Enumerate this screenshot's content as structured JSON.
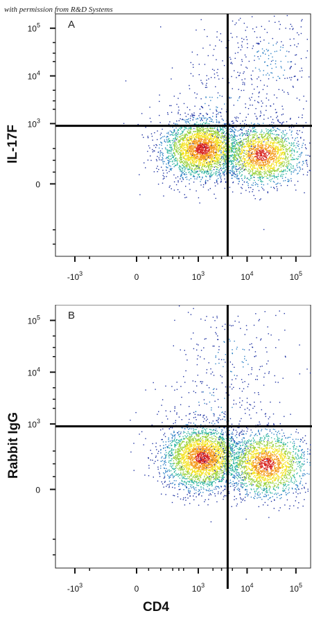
{
  "credit_text": "with permission from R&D Systems",
  "x_axis_label": "CD4",
  "chart_data": [
    {
      "type": "scatter",
      "panel_label": "A",
      "ylabel": "IL-17F",
      "xlabel": "CD4",
      "x_scale": "biexponential",
      "y_scale": "biexponential",
      "x_ticks": [
        {
          "base": "-10",
          "exp": "3",
          "value": -1000
        },
        {
          "base": "0",
          "exp": "",
          "value": 0
        },
        {
          "base": "10",
          "exp": "3",
          "value": 1000
        },
        {
          "base": "10",
          "exp": "4",
          "value": 10000
        },
        {
          "base": "10",
          "exp": "5",
          "value": 100000
        }
      ],
      "y_ticks": [
        {
          "base": "0",
          "exp": "",
          "value": 0
        },
        {
          "base": "10",
          "exp": "3",
          "value": 1000
        },
        {
          "base": "10",
          "exp": "4",
          "value": 10000
        },
        {
          "base": "10",
          "exp": "5",
          "value": 100000
        }
      ],
      "quadrant_gate": {
        "x": 4000,
        "y": 900
      },
      "populations": [
        {
          "center_x": 1200,
          "center_y": 300,
          "relative_size": 0.55
        },
        {
          "center_x": 20000,
          "center_y": 250,
          "relative_size": 0.35
        },
        {
          "center_x": 30000,
          "center_y": 20000,
          "relative_size": 0.06,
          "sparse": true
        },
        {
          "center_x": 3000,
          "center_y": 3000,
          "relative_size": 0.04,
          "sparse": true
        }
      ],
      "density_colors": [
        "#1b2fa0",
        "#2a7fc4",
        "#2fb5a0",
        "#9ad13c",
        "#f3e21e",
        "#f49a1a",
        "#d7231f"
      ]
    },
    {
      "type": "scatter",
      "panel_label": "B",
      "ylabel": "Rabbit IgG",
      "xlabel": "CD4",
      "x_scale": "biexponential",
      "y_scale": "biexponential",
      "x_ticks": [
        {
          "base": "-10",
          "exp": "3",
          "value": -1000
        },
        {
          "base": "0",
          "exp": "",
          "value": 0
        },
        {
          "base": "10",
          "exp": "3",
          "value": 1000
        },
        {
          "base": "10",
          "exp": "4",
          "value": 10000
        },
        {
          "base": "10",
          "exp": "5",
          "value": 100000
        }
      ],
      "y_ticks": [
        {
          "base": "0",
          "exp": "",
          "value": 0
        },
        {
          "base": "10",
          "exp": "3",
          "value": 1000
        },
        {
          "base": "10",
          "exp": "4",
          "value": 10000
        },
        {
          "base": "10",
          "exp": "5",
          "value": 100000
        }
      ],
      "quadrant_gate": {
        "x": 4000,
        "y": 900
      },
      "populations": [
        {
          "center_x": 1200,
          "center_y": 250,
          "relative_size": 0.55
        },
        {
          "center_x": 25000,
          "center_y": 200,
          "relative_size": 0.38
        },
        {
          "center_x": 5000,
          "center_y": 20000,
          "relative_size": 0.04,
          "sparse": true
        },
        {
          "center_x": 2000,
          "center_y": 2000,
          "relative_size": 0.03,
          "sparse": true
        }
      ],
      "density_colors": [
        "#1b2fa0",
        "#2a7fc4",
        "#2fb5a0",
        "#9ad13c",
        "#f3e21e",
        "#f49a1a",
        "#d7231f"
      ]
    }
  ]
}
